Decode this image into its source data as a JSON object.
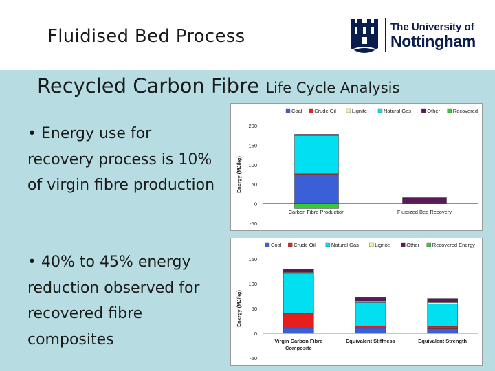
{
  "header": {
    "title": "Fluidised Bed Process",
    "logo": {
      "line1": "The University of",
      "line2": "Nottingham",
      "icon": "castle-crest-icon",
      "color": "#0b1d4d"
    }
  },
  "main": {
    "title": "Recycled Carbon Fibre",
    "subtitle": "Life Cycle Analysis",
    "bullets": [
      "• Energy use for recovery process is 10% of virgin fibre production",
      "• 40% to 45% energy reduction observed for recovered fibre composites"
    ]
  },
  "colors": {
    "Coal": "#3a5fd6",
    "Crude Oil": "#e61e1e",
    "Natural Gas": "#00e0f0",
    "Lignite": "#f2f2a6",
    "Other": "#5a1a5a",
    "Recovered": "#33cc33",
    "Recovered Energy": "#33cc33"
  },
  "chart_data": [
    {
      "type": "bar",
      "stacked": true,
      "categories": [
        "Carbon Fibre Production",
        "Fluidized Bed Recovery"
      ],
      "ylabel": "Energy (MJ/kg)",
      "ylim": [
        -50,
        200
      ],
      "yticks": [
        "200",
        "150",
        "100",
        "50",
        "0",
        "-50"
      ],
      "legend_position": "top",
      "series": [
        {
          "name": "Coal",
          "values": [
            75,
            0
          ]
        },
        {
          "name": "Crude Oil",
          "values": [
            2,
            0
          ]
        },
        {
          "name": "Lignite",
          "values": [
            0,
            0
          ]
        },
        {
          "name": "Natural Gas",
          "values": [
            98,
            0
          ]
        },
        {
          "name": "Other",
          "values": [
            3,
            16
          ]
        },
        {
          "name": "Recovered",
          "values": [
            -12,
            0
          ]
        }
      ]
    },
    {
      "type": "bar",
      "stacked": true,
      "categories": [
        "Virgin Carbon Fibre Composite",
        "Equivalent Stiffness",
        "Equivalent Strength"
      ],
      "ylabel": "Energy (MJ/kg)",
      "ylim": [
        -50,
        150
      ],
      "yticks": [
        "150",
        "100",
        "50",
        "0",
        "-50"
      ],
      "legend_position": "top",
      "series": [
        {
          "name": "Coal",
          "values": [
            10,
            10,
            9
          ]
        },
        {
          "name": "Crude Oil",
          "values": [
            30,
            5,
            5
          ]
        },
        {
          "name": "Natural Gas",
          "values": [
            80,
            47,
            45
          ]
        },
        {
          "name": "Lignite",
          "values": [
            3,
            3,
            3
          ]
        },
        {
          "name": "Other",
          "values": [
            7,
            7,
            8
          ]
        },
        {
          "name": "Recovered Energy",
          "values": [
            0,
            0,
            0
          ]
        }
      ]
    }
  ]
}
